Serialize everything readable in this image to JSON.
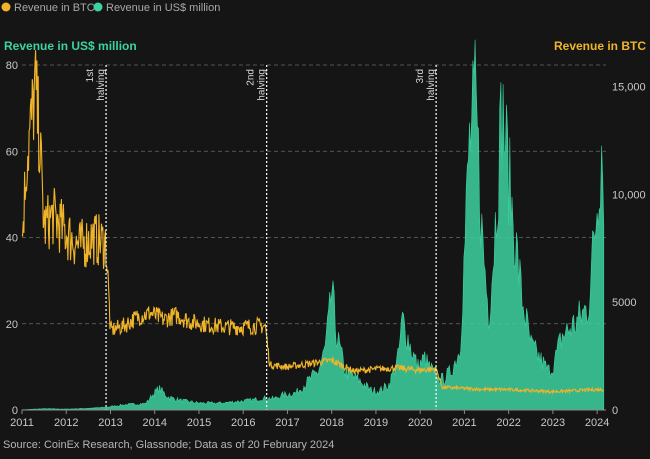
{
  "legend": [
    {
      "label": "Revenue in BTC",
      "color": "#f0b429"
    },
    {
      "label": "Revenue in US$ million",
      "color": "#3dd2a1"
    }
  ],
  "axis_titles": {
    "left": "Revenue in US$ million",
    "right": "Revenue in BTC"
  },
  "source": "Source: CoinEx Research, Glassnode; Data as of 20 February 2024",
  "chart_data": {
    "type": "area",
    "x_axis": {
      "ticks": [
        "2011",
        "2012",
        "2013",
        "2014",
        "2015",
        "2016",
        "2017",
        "2018",
        "2019",
        "2020",
        "2021",
        "2022",
        "2023",
        "2024"
      ],
      "range": [
        "2011",
        "2024.2"
      ]
    },
    "y_left": {
      "label": "Revenue in US$ million",
      "ticks": [
        "0",
        "20",
        "40",
        "60",
        "80"
      ],
      "range": [
        0,
        80
      ]
    },
    "y_right": {
      "label": "Revenue in BTC",
      "ticks": [
        "0",
        "5000",
        "10,000",
        "15,000"
      ],
      "range": [
        0,
        16000
      ]
    },
    "grid": "horizontal-dashed",
    "legend_position": "top-left",
    "annotations": [
      {
        "label": "1st halving",
        "x": 2012.9
      },
      {
        "label": "2nd halving",
        "x": 2016.53
      },
      {
        "label": "3rd halving",
        "x": 2020.36
      }
    ],
    "series": [
      {
        "name": "Revenue in US$ million",
        "axis": "left",
        "color": "#3dd2a1",
        "x": [
          2011.0,
          2011.5,
          2012.0,
          2012.5,
          2012.9,
          2013.0,
          2013.3,
          2013.8,
          2013.95,
          2014.1,
          2014.3,
          2014.6,
          2015.0,
          2015.5,
          2015.9,
          2016.2,
          2016.5,
          2016.7,
          2016.9,
          2017.2,
          2017.5,
          2017.7,
          2017.85,
          2017.95,
          2018.0,
          2018.1,
          2018.3,
          2018.6,
          2018.9,
          2019.1,
          2019.3,
          2019.5,
          2019.6,
          2019.8,
          2019.95,
          2020.1,
          2020.2,
          2020.36,
          2020.5,
          2020.7,
          2020.9,
          2021.0,
          2021.1,
          2021.25,
          2021.4,
          2021.55,
          2021.65,
          2021.85,
          2021.95,
          2022.1,
          2022.3,
          2022.5,
          2022.7,
          2022.9,
          2023.0,
          2023.2,
          2023.5,
          2023.8,
          2024.0,
          2024.1,
          2024.15
        ],
        "y": [
          0.05,
          0.3,
          0.2,
          0.4,
          0.6,
          0.8,
          1.2,
          1.5,
          3.5,
          5.0,
          3.0,
          2.2,
          1.6,
          1.6,
          2.0,
          2.3,
          2.8,
          2.6,
          3.5,
          4.0,
          7.0,
          9.0,
          14.0,
          22.0,
          28.0,
          18.0,
          9.0,
          7.0,
          4.5,
          4.5,
          6.0,
          12.0,
          21.0,
          14.0,
          10.0,
          12.0,
          10.0,
          8.0,
          7.0,
          9.0,
          14.0,
          36.0,
          60.0,
          72.0,
          40.0,
          22.0,
          35.0,
          70.0,
          60.0,
          44.0,
          26.0,
          15.0,
          12.0,
          9.0,
          10.0,
          17.0,
          20.0,
          24.0,
          48.0,
          62.0,
          52.0
        ]
      },
      {
        "name": "Revenue in BTC",
        "axis": "right",
        "color": "#f0b429",
        "x": [
          2011.0,
          2011.1,
          2011.25,
          2011.3,
          2011.4,
          2011.5,
          2011.7,
          2012.0,
          2012.3,
          2012.6,
          2012.9,
          2013.0,
          2013.3,
          2013.6,
          2013.9,
          2014.2,
          2014.5,
          2014.8,
          2015.2,
          2015.6,
          2016.0,
          2016.3,
          2016.5,
          2016.6,
          2017.0,
          2017.5,
          2018.0,
          2018.5,
          2019.0,
          2019.5,
          2020.0,
          2020.36,
          2020.5,
          2021.0,
          2021.5,
          2022.0,
          2022.5,
          2023.0,
          2023.5,
          2024.0,
          2024.15
        ],
        "y": [
          7800,
          11500,
          14000,
          15000,
          12500,
          8500,
          9000,
          8200,
          7600,
          8000,
          7700,
          3700,
          3900,
          4300,
          4500,
          4200,
          4400,
          4100,
          3950,
          3850,
          3850,
          3900,
          3900,
          2100,
          2000,
          2150,
          2300,
          1800,
          1900,
          1950,
          1850,
          1900,
          1050,
          1000,
          950,
          950,
          900,
          850,
          900,
          950,
          950
        ]
      }
    ]
  }
}
